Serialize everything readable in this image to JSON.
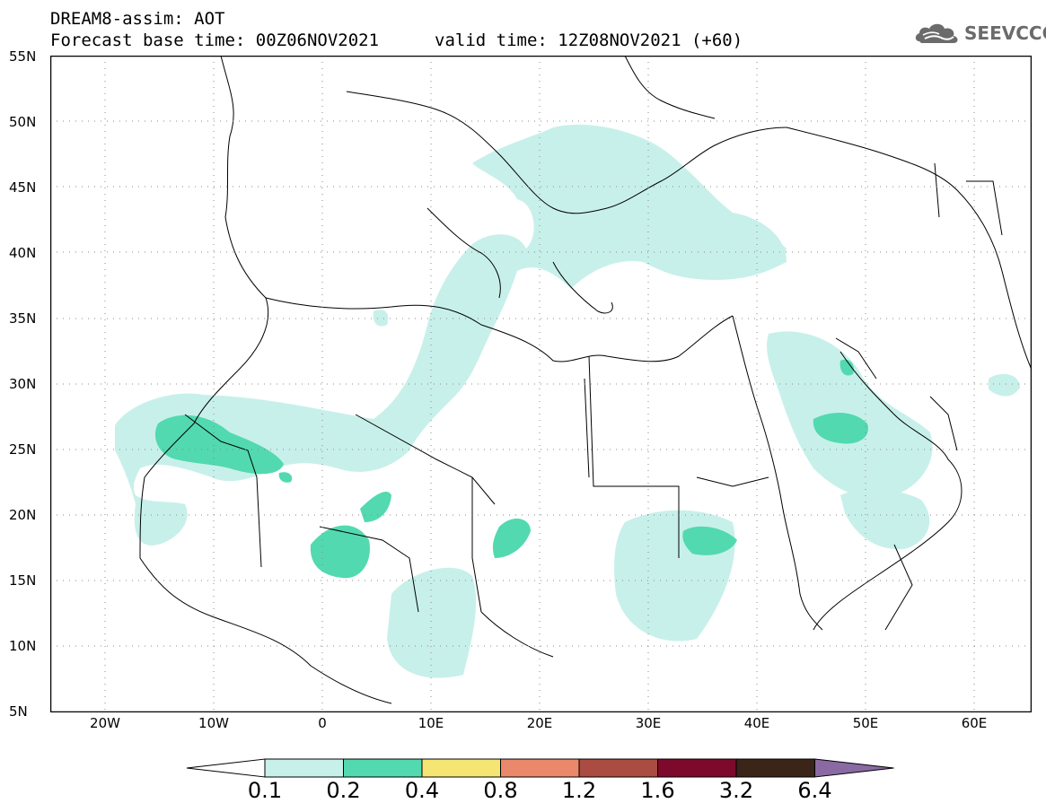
{
  "header": {
    "title": "DREAM8-assim: AOT",
    "base_time": "Forecast base time: 00Z06NOV2021",
    "valid_time": "valid time: 12Z08NOV2021 (+60)"
  },
  "logo": {
    "text": "SEEVCCC",
    "icon": "cloud-icon"
  },
  "map": {
    "projection": "lat-lon",
    "lon_range": [
      -25,
      65
    ],
    "lat_range": [
      5,
      55
    ],
    "lat_ticks": [
      "55N",
      "50N",
      "45N",
      "40N",
      "35N",
      "30N",
      "25N",
      "20N",
      "15N",
      "10N",
      "5N"
    ],
    "lon_ticks": [
      "20W",
      "10W",
      "0",
      "10E",
      "20E",
      "30E",
      "40E",
      "50E",
      "60E"
    ],
    "grid": "dotted"
  },
  "colorbar": {
    "labels": [
      "0.1",
      "0.2",
      "0.4",
      "0.8",
      "1.2",
      "1.6",
      "3.2",
      "6.4"
    ],
    "colors": [
      "#ffffff",
      "#c8f0ea",
      "#52d9b0",
      "#f5e674",
      "#e9886a",
      "#aa4c42",
      "#7d0a2c",
      "#3b2418",
      "#8a6aa3"
    ]
  }
}
